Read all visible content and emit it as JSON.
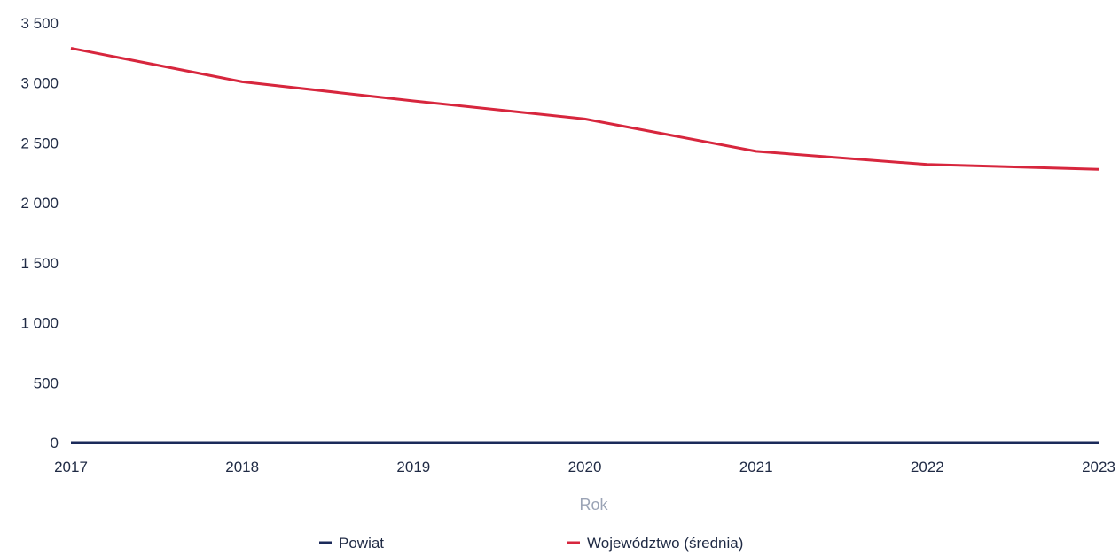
{
  "chart_data": {
    "type": "line",
    "x": [
      "2017",
      "2018",
      "2019",
      "2020",
      "2021",
      "2022",
      "2023"
    ],
    "series": [
      {
        "name": "Powiat",
        "color": "#1b2a5a",
        "values": [
          0,
          0,
          0,
          0,
          0,
          0,
          0
        ]
      },
      {
        "name": "Województwo (średnia)",
        "color": "#d7263d",
        "values": [
          3290,
          3010,
          2850,
          2700,
          2430,
          2320,
          2280
        ]
      }
    ],
    "yticks": [
      "0",
      "500",
      "1 000",
      "1 500",
      "2 000",
      "2 500",
      "3 000",
      "3 500"
    ],
    "ytick_values": [
      0,
      500,
      1000,
      1500,
      2000,
      2500,
      3000,
      3500
    ],
    "ylim": [
      0,
      3500
    ],
    "xlabel": "Rok",
    "ylabel": "",
    "grid": false,
    "legend_position": "bottom"
  }
}
